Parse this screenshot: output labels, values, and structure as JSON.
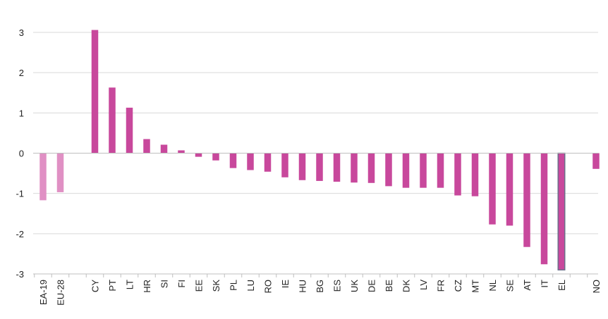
{
  "chart_data": {
    "type": "bar",
    "title": "",
    "xlabel": "",
    "ylabel": "",
    "ylim": [
      -3,
      3
    ],
    "yticks": [
      3,
      2,
      1,
      0,
      -1,
      -2,
      -3
    ],
    "grid": true,
    "colors": {
      "aggregate": "#e090c4",
      "country": "#c8489c",
      "highlight_outline": "#6b6f8a",
      "grid": "#d9d9d9",
      "axis": "#bfbfbf"
    },
    "categories": [
      "EA-19",
      "EU-28",
      "CY",
      "PT",
      "LT",
      "HR",
      "SI",
      "FI",
      "EE",
      "SK",
      "PL",
      "LU",
      "RO",
      "IE",
      "HU",
      "BG",
      "ES",
      "UK",
      "DE",
      "BE",
      "DK",
      "LV",
      "FR",
      "CZ",
      "MT",
      "NL",
      "SE",
      "AT",
      "IT",
      "EL",
      "NO"
    ],
    "values": [
      -1.17,
      -0.97,
      3.06,
      1.63,
      1.13,
      0.35,
      0.21,
      0.07,
      -0.09,
      -0.18,
      -0.37,
      -0.42,
      -0.46,
      -0.6,
      -0.67,
      -0.69,
      -0.71,
      -0.73,
      -0.74,
      -0.82,
      -0.86,
      -0.86,
      -0.86,
      -1.05,
      -1.07,
      -1.77,
      -1.8,
      -2.33,
      -2.76,
      -2.9,
      -0.39
    ]
  }
}
